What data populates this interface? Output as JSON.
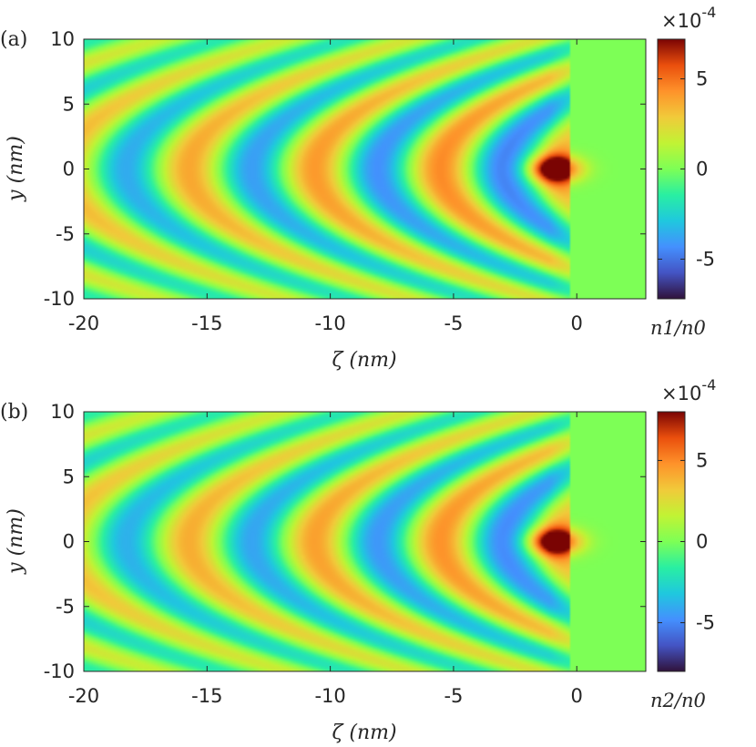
{
  "chart_data": [
    {
      "type": "heatmap",
      "panel_label": "(a)",
      "xlabel": "ζ (nm)",
      "ylabel": "y (nm)",
      "xlim": [
        -20,
        2.8
      ],
      "ylim": [
        -10,
        10
      ],
      "x_ticks": [
        "-20",
        "-15",
        "-10",
        "-5",
        "0"
      ],
      "x_tick_values": [
        -20,
        -15,
        -10,
        -5,
        0
      ],
      "y_ticks": [
        "10",
        "5",
        "0",
        "-5",
        "-10"
      ],
      "y_tick_values": [
        10,
        5,
        0,
        -5,
        -10
      ],
      "colorbar": {
        "label": "n1/n0",
        "range": [
          -7.2,
          7.2
        ],
        "ticks": [
          "5",
          "0",
          "-5"
        ],
        "tick_values": [
          5,
          0,
          -5
        ],
        "multiplier": "×10-4",
        "colormap": "turbo"
      },
      "wake": {
        "peak": 7.0,
        "trough": -6.0,
        "wavelength_nm": 5.1,
        "pulse_center_nm": -0.9
      }
    },
    {
      "type": "heatmap",
      "panel_label": "(b)",
      "xlabel": "ζ (nm)",
      "ylabel": "y (nm)",
      "xlim": [
        -20,
        2.8
      ],
      "ylim": [
        -10,
        10
      ],
      "x_ticks": [
        "-20",
        "-15",
        "-10",
        "-5",
        "0"
      ],
      "x_tick_values": [
        -20,
        -15,
        -10,
        -5,
        0
      ],
      "y_ticks": [
        "10",
        "5",
        "0",
        "-5",
        "-10"
      ],
      "y_tick_values": [
        10,
        5,
        0,
        -5,
        -10
      ],
      "colorbar": {
        "label": "n2/n0",
        "range": [
          -8.0,
          8.0
        ],
        "ticks": [
          "5",
          "0",
          "-5"
        ],
        "tick_values": [
          5,
          0,
          -5
        ],
        "multiplier": "×10-4",
        "colormap": "turbo"
      },
      "wake": {
        "peak": 7.6,
        "trough": -6.4,
        "wavelength_nm": 5.1,
        "pulse_center_nm": -0.9
      }
    }
  ]
}
